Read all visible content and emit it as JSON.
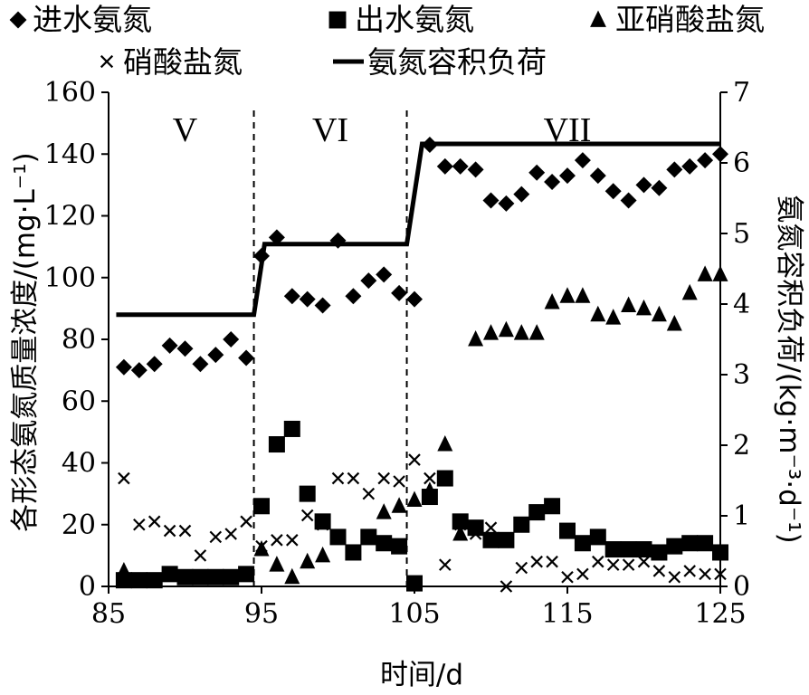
{
  "chart_data": {
    "type": "scatter",
    "xlabel": "时间/d",
    "ylabel_left": "各形态氨氮质量浓度/(mg·L⁻¹)",
    "ylabel_right": "氨氮容积负荷/(kg·m⁻³·d⁻¹)",
    "xlim": [
      85,
      125
    ],
    "ylim_left": [
      0,
      160
    ],
    "ylim_right": [
      0,
      7
    ],
    "x_ticks": [
      "85",
      "95",
      "105",
      "115",
      "125"
    ],
    "y_ticks_left": [
      "0",
      "20",
      "40",
      "60",
      "80",
      "100",
      "120",
      "140",
      "160"
    ],
    "y_ticks_right": [
      "0",
      "1",
      "2",
      "3",
      "4",
      "5",
      "6",
      "7"
    ],
    "stage_boundaries": [
      94.5,
      104.5
    ],
    "stage_labels": [
      {
        "text": "V",
        "x": 90
      },
      {
        "text": "VI",
        "x": 99.5
      },
      {
        "text": "VII",
        "x": 115
      }
    ],
    "legend": [
      {
        "label": "进水氨氮",
        "marker": "diamond"
      },
      {
        "label": "出水氨氮",
        "marker": "square"
      },
      {
        "label": "亚硝酸盐氮",
        "marker": "triangle"
      },
      {
        "label": "硝酸盐氮",
        "marker": "x"
      },
      {
        "label": "氨氮容积负荷",
        "marker": "line"
      }
    ],
    "series": [
      {
        "name": "进水氨氮",
        "axis": "left",
        "marker": "diamond",
        "points": [
          [
            86,
            71
          ],
          [
            87,
            70
          ],
          [
            88,
            72
          ],
          [
            89,
            78
          ],
          [
            90,
            77
          ],
          [
            91,
            72
          ],
          [
            92,
            75
          ],
          [
            93,
            80
          ],
          [
            94,
            74
          ],
          [
            95,
            107
          ],
          [
            96,
            113
          ],
          [
            97,
            94
          ],
          [
            98,
            93
          ],
          [
            99,
            91
          ],
          [
            100,
            112
          ],
          [
            101,
            94
          ],
          [
            102,
            99
          ],
          [
            103,
            101
          ],
          [
            104,
            95
          ],
          [
            105,
            93
          ],
          [
            106,
            143
          ],
          [
            107,
            136
          ],
          [
            108,
            136
          ],
          [
            109,
            135
          ],
          [
            110,
            125
          ],
          [
            111,
            124
          ],
          [
            112,
            127
          ],
          [
            113,
            134
          ],
          [
            114,
            131
          ],
          [
            115,
            133
          ],
          [
            116,
            138
          ],
          [
            117,
            133
          ],
          [
            118,
            128
          ],
          [
            119,
            125
          ],
          [
            120,
            130
          ],
          [
            121,
            129
          ],
          [
            122,
            135
          ],
          [
            123,
            136
          ],
          [
            124,
            138
          ],
          [
            125,
            140
          ]
        ]
      },
      {
        "name": "出水氨氮",
        "axis": "left",
        "marker": "square",
        "points": [
          [
            86,
            2
          ],
          [
            87,
            2
          ],
          [
            88,
            2
          ],
          [
            89,
            4
          ],
          [
            90,
            3
          ],
          [
            91,
            3
          ],
          [
            92,
            3
          ],
          [
            93,
            3
          ],
          [
            94,
            4
          ],
          [
            95,
            26
          ],
          [
            96,
            46
          ],
          [
            97,
            51
          ],
          [
            98,
            30
          ],
          [
            99,
            21
          ],
          [
            100,
            16
          ],
          [
            101,
            11
          ],
          [
            102,
            16
          ],
          [
            103,
            14
          ],
          [
            104,
            13
          ],
          [
            105,
            1
          ],
          [
            106,
            29
          ],
          [
            107,
            35
          ],
          [
            108,
            21
          ],
          [
            109,
            19
          ],
          [
            110,
            15
          ],
          [
            111,
            15
          ],
          [
            112,
            20
          ],
          [
            113,
            24
          ],
          [
            114,
            26
          ],
          [
            115,
            18
          ],
          [
            116,
            14
          ],
          [
            117,
            16
          ],
          [
            118,
            12
          ],
          [
            119,
            12
          ],
          [
            120,
            12
          ],
          [
            121,
            11
          ],
          [
            122,
            13
          ],
          [
            123,
            14
          ],
          [
            124,
            14
          ],
          [
            125,
            11
          ]
        ]
      },
      {
        "name": "亚硝酸盐氮",
        "axis": "left",
        "marker": "triangle",
        "points": [
          [
            86,
            5
          ],
          [
            95,
            12
          ],
          [
            96,
            7
          ],
          [
            97,
            3
          ],
          [
            98,
            8
          ],
          [
            99,
            10
          ],
          [
            103,
            24
          ],
          [
            104,
            26
          ],
          [
            105,
            28
          ],
          [
            106,
            31
          ],
          [
            107,
            46
          ],
          [
            108,
            17
          ],
          [
            109,
            80
          ],
          [
            110,
            82
          ],
          [
            111,
            83
          ],
          [
            112,
            82
          ],
          [
            113,
            82
          ],
          [
            114,
            92
          ],
          [
            115,
            94
          ],
          [
            116,
            94
          ],
          [
            117,
            88
          ],
          [
            118,
            87
          ],
          [
            119,
            91
          ],
          [
            120,
            90
          ],
          [
            121,
            88
          ],
          [
            122,
            85
          ],
          [
            123,
            95
          ],
          [
            124,
            101
          ],
          [
            125,
            101
          ]
        ]
      },
      {
        "name": "硝酸盐氮",
        "axis": "left",
        "marker": "x",
        "points": [
          [
            86,
            35
          ],
          [
            87,
            20
          ],
          [
            88,
            21
          ],
          [
            89,
            18
          ],
          [
            90,
            18
          ],
          [
            91,
            10
          ],
          [
            92,
            16
          ],
          [
            93,
            17
          ],
          [
            94,
            21
          ],
          [
            95,
            13
          ],
          [
            96,
            15
          ],
          [
            97,
            15
          ],
          [
            98,
            23
          ],
          [
            99,
            20
          ],
          [
            100,
            35
          ],
          [
            101,
            35
          ],
          [
            102,
            30
          ],
          [
            103,
            35
          ],
          [
            104,
            34
          ],
          [
            105,
            41
          ],
          [
            106,
            35
          ],
          [
            107,
            7
          ],
          [
            108,
            20
          ],
          [
            109,
            17
          ],
          [
            110,
            19
          ],
          [
            111,
            0
          ],
          [
            112,
            6
          ],
          [
            113,
            8
          ],
          [
            114,
            8
          ],
          [
            115,
            3
          ],
          [
            116,
            4
          ],
          [
            117,
            8
          ],
          [
            118,
            7
          ],
          [
            119,
            7
          ],
          [
            120,
            8
          ],
          [
            121,
            5
          ],
          [
            122,
            3
          ],
          [
            123,
            5
          ],
          [
            124,
            4
          ],
          [
            125,
            4
          ]
        ]
      },
      {
        "name": "氨氮容积负荷",
        "axis": "right",
        "marker": "line",
        "points": [
          [
            85.5,
            3.85
          ],
          [
            94.5,
            3.85
          ],
          [
            95.2,
            4.85
          ],
          [
            104.5,
            4.85
          ],
          [
            105.5,
            6.27
          ],
          [
            125,
            6.27
          ]
        ]
      }
    ]
  }
}
